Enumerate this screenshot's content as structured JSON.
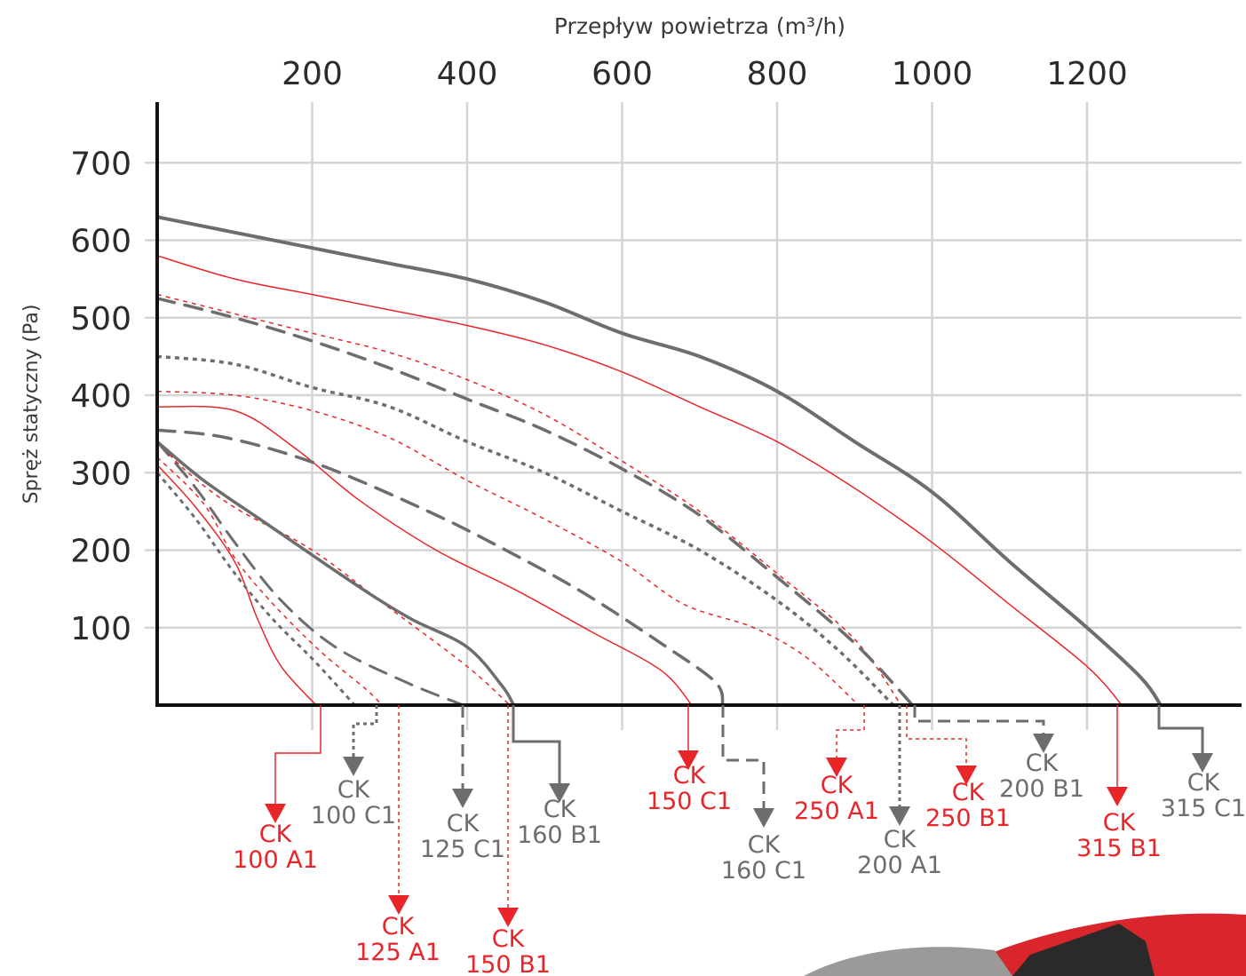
{
  "chart_data": {
    "type": "line",
    "xlabel": "Przepływ powietrza (m³/h)",
    "ylabel": "Spręż statyczny (Pa)",
    "xlim": [
      0,
      1400
    ],
    "ylim": [
      0,
      700
    ],
    "x_ticks": [
      200,
      400,
      600,
      800,
      1000,
      1200
    ],
    "y_ticks": [
      100,
      200,
      300,
      400,
      500,
      600,
      700
    ],
    "grid": true,
    "legend": "labels under x-axis with arrows",
    "colors": {
      "red": "#e8262a",
      "gray": "#6d6d6e"
    },
    "series": [
      {
        "name": "CK 100 A1",
        "color": "red",
        "style": "solid",
        "width": 1.5,
        "points": [
          [
            0,
            310
          ],
          [
            50,
            255
          ],
          [
            100,
            185
          ],
          [
            130,
            110
          ],
          [
            160,
            50
          ],
          [
            205,
            0
          ]
        ],
        "label": [
          "CK",
          "100 A1"
        ]
      },
      {
        "name": "CK 100 C1",
        "color": "gray",
        "style": "dotted",
        "width": 3,
        "points": [
          [
            0,
            300
          ],
          [
            50,
            240
          ],
          [
            100,
            170
          ],
          [
            150,
            110
          ],
          [
            200,
            60
          ],
          [
            255,
            0
          ]
        ],
        "label": [
          "CK",
          "100 C1"
        ]
      },
      {
        "name": "CK 125 A1",
        "color": "red",
        "style": "dotted",
        "width": 1.5,
        "points": [
          [
            0,
            320
          ],
          [
            60,
            260
          ],
          [
            100,
            190
          ],
          [
            150,
            130
          ],
          [
            210,
            70
          ],
          [
            270,
            20
          ],
          [
            290,
            0
          ]
        ],
        "label": [
          "CK",
          "125 A1"
        ]
      },
      {
        "name": "CK 125 C1",
        "color": "gray",
        "style": "dashed",
        "width": 3,
        "points": [
          [
            0,
            340
          ],
          [
            50,
            280
          ],
          [
            100,
            210
          ],
          [
            160,
            135
          ],
          [
            230,
            75
          ],
          [
            320,
            30
          ],
          [
            395,
            0
          ]
        ],
        "label": [
          "CK",
          "125 C1"
        ]
      },
      {
        "name": "CK 150 B1",
        "color": "red",
        "style": "dotted",
        "width": 1.5,
        "points": [
          [
            0,
            340
          ],
          [
            40,
            300
          ],
          [
            100,
            255
          ],
          [
            200,
            200
          ],
          [
            300,
            125
          ],
          [
            400,
            50
          ],
          [
            455,
            0
          ]
        ],
        "label": [
          "CK",
          "150 B1"
        ]
      },
      {
        "name": "CK 160 B1",
        "color": "gray",
        "style": "solid",
        "width": 3.5,
        "points": [
          [
            0,
            340
          ],
          [
            60,
            290
          ],
          [
            140,
            235
          ],
          [
            220,
            180
          ],
          [
            280,
            140
          ],
          [
            330,
            110
          ],
          [
            400,
            75
          ],
          [
            445,
            25
          ],
          [
            460,
            0
          ]
        ],
        "label": [
          "CK",
          "160 B1"
        ]
      },
      {
        "name": "CK 150 C1",
        "color": "red",
        "style": "solid",
        "width": 1.5,
        "points": [
          [
            0,
            385
          ],
          [
            100,
            380
          ],
          [
            180,
            330
          ],
          [
            260,
            265
          ],
          [
            360,
            200
          ],
          [
            460,
            150
          ],
          [
            560,
            95
          ],
          [
            650,
            45
          ],
          [
            690,
            0
          ]
        ],
        "label": [
          "CK",
          "150 C1"
        ]
      },
      {
        "name": "CK 160 C1",
        "color": "gray",
        "style": "dashed",
        "width": 3.5,
        "points": [
          [
            0,
            355
          ],
          [
            90,
            345
          ],
          [
            210,
            310
          ],
          [
            350,
            250
          ],
          [
            450,
            200
          ],
          [
            550,
            145
          ],
          [
            650,
            80
          ],
          [
            720,
            30
          ],
          [
            730,
            0
          ]
        ],
        "label": [
          "CK",
          "160 C1"
        ]
      },
      {
        "name": "CK 250 A1",
        "color": "red",
        "style": "dotted",
        "width": 1.5,
        "points": [
          [
            0,
            405
          ],
          [
            100,
            400
          ],
          [
            200,
            380
          ],
          [
            300,
            345
          ],
          [
            400,
            290
          ],
          [
            500,
            240
          ],
          [
            600,
            185
          ],
          [
            680,
            130
          ],
          [
            770,
            100
          ],
          [
            840,
            60
          ],
          [
            905,
            0
          ]
        ],
        "label": [
          "CK",
          "250 A1"
        ]
      },
      {
        "name": "CK 200 A1",
        "color": "gray",
        "style": "dotted",
        "width": 3.5,
        "points": [
          [
            0,
            450
          ],
          [
            100,
            440
          ],
          [
            200,
            410
          ],
          [
            300,
            385
          ],
          [
            400,
            340
          ],
          [
            500,
            300
          ],
          [
            600,
            250
          ],
          [
            700,
            200
          ],
          [
            800,
            135
          ],
          [
            880,
            70
          ],
          [
            950,
            0
          ]
        ],
        "label": [
          "CK",
          "200 A1"
        ]
      },
      {
        "name": "CK 250 B1",
        "color": "red",
        "style": "dotted",
        "width": 1.5,
        "points": [
          [
            0,
            530
          ],
          [
            100,
            505
          ],
          [
            200,
            480
          ],
          [
            300,
            455
          ],
          [
            400,
            420
          ],
          [
            500,
            375
          ],
          [
            600,
            315
          ],
          [
            700,
            250
          ],
          [
            800,
            170
          ],
          [
            900,
            85
          ],
          [
            960,
            0
          ]
        ],
        "label": [
          "CK",
          "250 B1"
        ]
      },
      {
        "name": "CK 200 B1",
        "color": "gray",
        "style": "dashed",
        "width": 3.5,
        "points": [
          [
            0,
            525
          ],
          [
            100,
            500
          ],
          [
            200,
            470
          ],
          [
            300,
            435
          ],
          [
            400,
            395
          ],
          [
            500,
            355
          ],
          [
            600,
            305
          ],
          [
            700,
            245
          ],
          [
            800,
            165
          ],
          [
            900,
            80
          ],
          [
            975,
            0
          ]
        ],
        "label": [
          "CK",
          "200 B1"
        ]
      },
      {
        "name": "CK 315 B1",
        "color": "red",
        "style": "solid",
        "width": 1.5,
        "points": [
          [
            0,
            580
          ],
          [
            100,
            550
          ],
          [
            200,
            530
          ],
          [
            300,
            510
          ],
          [
            400,
            490
          ],
          [
            500,
            465
          ],
          [
            600,
            430
          ],
          [
            700,
            385
          ],
          [
            800,
            340
          ],
          [
            900,
            280
          ],
          [
            1000,
            210
          ],
          [
            1100,
            130
          ],
          [
            1200,
            50
          ],
          [
            1245,
            0
          ]
        ],
        "label": [
          "CK",
          "315 B1"
        ]
      },
      {
        "name": "CK 315 C1",
        "color": "gray",
        "style": "solid",
        "width": 4,
        "points": [
          [
            0,
            630
          ],
          [
            100,
            610
          ],
          [
            200,
            590
          ],
          [
            300,
            570
          ],
          [
            400,
            550
          ],
          [
            500,
            520
          ],
          [
            600,
            480
          ],
          [
            700,
            450
          ],
          [
            800,
            405
          ],
          [
            900,
            340
          ],
          [
            1000,
            275
          ],
          [
            1100,
            185
          ],
          [
            1200,
            100
          ],
          [
            1270,
            35
          ],
          [
            1295,
            0
          ]
        ],
        "label": [
          "CK",
          "315 C1"
        ]
      }
    ]
  }
}
